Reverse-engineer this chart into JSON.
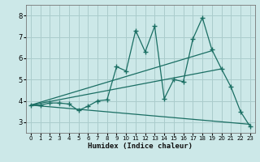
{
  "title": "",
  "xlabel": "Humidex (Indice chaleur)",
  "bg_color": "#cce8e8",
  "line_color": "#1a6e63",
  "grid_color": "#aacccc",
  "xlim": [
    -0.5,
    23.5
  ],
  "ylim": [
    2.5,
    8.5
  ],
  "xticks": [
    0,
    1,
    2,
    3,
    4,
    5,
    6,
    7,
    8,
    9,
    10,
    11,
    12,
    13,
    14,
    15,
    16,
    17,
    18,
    19,
    20,
    21,
    22,
    23
  ],
  "yticks": [
    3,
    4,
    5,
    6,
    7,
    8
  ],
  "series1_x": [
    0,
    1,
    2,
    3,
    4,
    5,
    6,
    7,
    8,
    9,
    10,
    11,
    12,
    13,
    14,
    15,
    16,
    17,
    18,
    19,
    20,
    21,
    22,
    23
  ],
  "series1_y": [
    3.8,
    3.8,
    3.9,
    3.9,
    3.85,
    3.55,
    3.75,
    4.0,
    4.05,
    5.6,
    5.4,
    7.3,
    6.3,
    7.5,
    4.1,
    5.0,
    4.9,
    6.9,
    7.9,
    6.4,
    5.5,
    4.65,
    3.5,
    2.8
  ],
  "trend1_x": [
    0,
    19
  ],
  "trend1_y": [
    3.8,
    6.35
  ],
  "trend2_x": [
    0,
    20
  ],
  "trend2_y": [
    3.8,
    5.5
  ],
  "trend3_x": [
    0,
    23
  ],
  "trend3_y": [
    3.8,
    2.9
  ]
}
